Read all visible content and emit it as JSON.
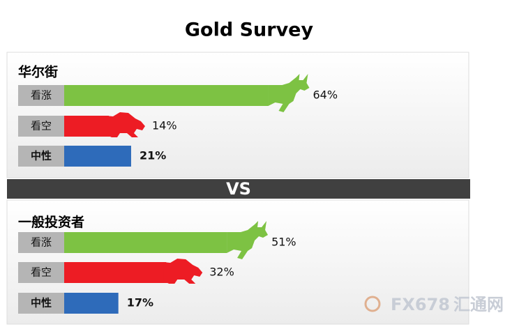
{
  "title": "Gold Survey",
  "divider": "VS",
  "watermark": {
    "brand": "FX678",
    "name": "汇通网"
  },
  "chart_data": [
    {
      "type": "bar",
      "orientation": "horizontal",
      "title": "华尔街",
      "categories": [
        "看涨",
        "看空",
        "中性"
      ],
      "values": [
        64,
        14,
        21
      ],
      "value_labels": [
        "64%",
        "14%",
        "21%"
      ],
      "colors": [
        "#7dc243",
        "#ed1c24",
        "#2e6bba"
      ],
      "xlim": [
        0,
        100
      ]
    },
    {
      "type": "bar",
      "orientation": "horizontal",
      "title": "一般投资者",
      "categories": [
        "看涨",
        "看空",
        "中性"
      ],
      "values": [
        51,
        32,
        17
      ],
      "value_labels": [
        "51%",
        "32%",
        "17%"
      ],
      "colors": [
        "#7dc243",
        "#ed1c24",
        "#2e6bba"
      ],
      "xlim": [
        0,
        100
      ]
    }
  ]
}
